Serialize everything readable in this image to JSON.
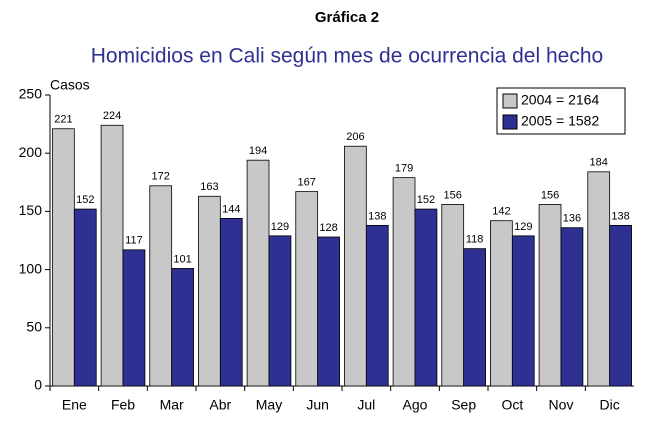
{
  "chart_data": {
    "type": "bar",
    "title": "Gráfica 2",
    "subtitle": "Homicidios en Cali según mes de ocurrencia del hecho",
    "y_label": "Casos",
    "categories": [
      "Ene",
      "Feb",
      "Mar",
      "Abr",
      "May",
      "Jun",
      "Jul",
      "Ago",
      "Sep",
      "Oct",
      "Nov",
      "Dic"
    ],
    "series": [
      {
        "name": "2004 = 2164",
        "color": "#c8c8c8",
        "values": [
          221,
          224,
          172,
          163,
          194,
          167,
          206,
          179,
          156,
          142,
          156,
          184
        ]
      },
      {
        "name": "2005 = 1582",
        "color": "#2e3192",
        "values": [
          152,
          117,
          101,
          144,
          129,
          128,
          138,
          152,
          118,
          129,
          136,
          138
        ]
      }
    ],
    "ylim": [
      0,
      250
    ],
    "yticks": [
      0,
      50,
      100,
      150,
      200,
      250
    ],
    "grid": false,
    "legend": "top-right"
  }
}
